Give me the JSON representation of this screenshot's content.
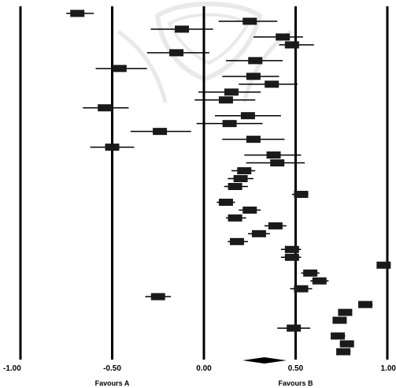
{
  "chart_data": {
    "type": "forest",
    "xlim": [
      -1.0,
      1.0
    ],
    "x_ticks": [
      {
        "value": -1.0,
        "label": "-1.00"
      },
      {
        "value": -0.5,
        "label": "-0.50"
      },
      {
        "value": 0.0,
        "label": "0.00"
      },
      {
        "value": 0.5,
        "label": "0.50"
      },
      {
        "value": 1.0,
        "label": "1.00"
      }
    ],
    "favour_labels": {
      "left": "Favours A",
      "right": "Favours B"
    },
    "grid_lines_at": [
      -1.0,
      -0.5,
      0.0,
      0.5,
      1.0
    ],
    "studies": [
      {
        "effect": -0.69,
        "ci": [
          -0.75,
          -0.6
        ]
      },
      {
        "effect": 0.25,
        "ci": [
          0.08,
          0.4
        ]
      },
      {
        "effect": -0.12,
        "ci": [
          -0.29,
          0.05
        ]
      },
      {
        "effect": 0.43,
        "ci": [
          0.27,
          0.54
        ]
      },
      {
        "effect": 0.48,
        "ci": [
          0.41,
          0.6
        ]
      },
      {
        "effect": -0.15,
        "ci": [
          -0.31,
          0.03
        ]
      },
      {
        "effect": 0.28,
        "ci": [
          0.12,
          0.43
        ]
      },
      {
        "effect": -0.46,
        "ci": [
          -0.59,
          -0.31
        ]
      },
      {
        "effect": 0.27,
        "ci": [
          0.1,
          0.41
        ]
      },
      {
        "effect": 0.37,
        "ci": [
          0.19,
          0.51
        ]
      },
      {
        "effect": 0.15,
        "ci": [
          -0.03,
          0.31
        ]
      },
      {
        "effect": 0.12,
        "ci": [
          -0.05,
          0.28
        ]
      },
      {
        "effect": -0.54,
        "ci": [
          -0.66,
          -0.41
        ]
      },
      {
        "effect": 0.24,
        "ci": [
          0.06,
          0.42
        ]
      },
      {
        "effect": 0.14,
        "ci": [
          -0.04,
          0.32
        ]
      },
      {
        "effect": -0.24,
        "ci": [
          -0.4,
          -0.07
        ]
      },
      {
        "effect": 0.27,
        "ci": [
          0.1,
          0.44
        ]
      },
      {
        "effect": -0.5,
        "ci": [
          -0.62,
          -0.38
        ]
      },
      {
        "effect": 0.38,
        "ci": [
          0.22,
          0.53
        ]
      },
      {
        "effect": 0.4,
        "ci": [
          0.23,
          0.55
        ]
      },
      {
        "effect": 0.22,
        "ci": [
          0.15,
          0.28
        ]
      },
      {
        "effect": 0.2,
        "ci": [
          0.13,
          0.27
        ]
      },
      {
        "effect": 0.17,
        "ci": [
          0.11,
          0.24
        ]
      },
      {
        "effect": 0.53,
        "ci": [
          0.48,
          0.57
        ]
      },
      {
        "effect": 0.12,
        "ci": [
          0.07,
          0.17
        ]
      },
      {
        "effect": 0.25,
        "ci": [
          0.19,
          0.31
        ]
      },
      {
        "effect": 0.17,
        "ci": [
          0.12,
          0.23
        ]
      },
      {
        "effect": 0.39,
        "ci": [
          0.33,
          0.45
        ]
      },
      {
        "effect": 0.3,
        "ci": [
          0.24,
          0.36
        ]
      },
      {
        "effect": 0.18,
        "ci": [
          0.13,
          0.24
        ]
      },
      {
        "effect": 0.48,
        "ci": [
          0.42,
          0.53
        ]
      },
      {
        "effect": 0.48,
        "ci": [
          0.42,
          0.53
        ]
      },
      {
        "effect": 0.98,
        "ci": [
          0.95,
          1.0
        ]
      },
      {
        "effect": 0.58,
        "ci": [
          0.53,
          0.63
        ]
      },
      {
        "effect": 0.63,
        "ci": [
          0.58,
          0.68
        ]
      },
      {
        "effect": 0.53,
        "ci": [
          0.47,
          0.59
        ]
      },
      {
        "effect": -0.25,
        "ci": [
          -0.32,
          -0.18
        ]
      },
      {
        "effect": 0.88,
        "ci": [
          0.85,
          0.92
        ]
      },
      {
        "effect": 0.77,
        "ci": [
          0.74,
          0.8
        ]
      },
      {
        "effect": 0.74,
        "ci": [
          0.71,
          0.77
        ]
      },
      {
        "effect": 0.49,
        "ci": [
          0.4,
          0.58
        ]
      },
      {
        "effect": 0.73,
        "ci": [
          0.7,
          0.77
        ]
      },
      {
        "effect": 0.78,
        "ci": [
          0.74,
          0.81
        ]
      },
      {
        "effect": 0.76,
        "ci": [
          0.73,
          0.8
        ]
      }
    ],
    "pooled": {
      "effect": 0.33,
      "ci": [
        0.21,
        0.45
      ]
    }
  }
}
